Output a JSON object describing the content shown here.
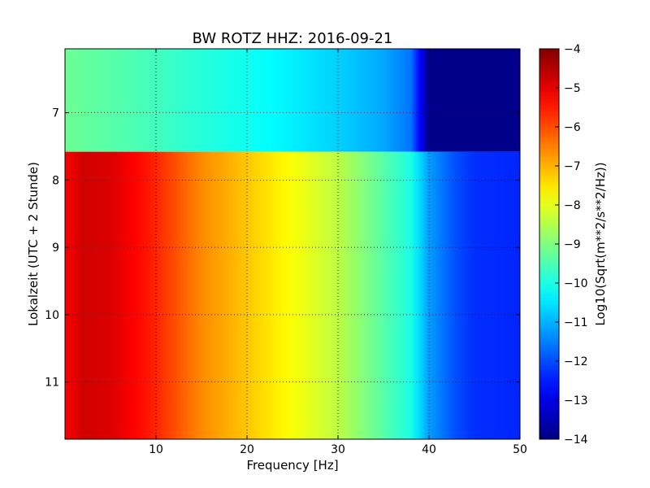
{
  "chart_data": {
    "type": "heatmap",
    "title": "BW ROTZ HHZ: 2016-09-21",
    "xlabel": "Frequency [Hz]",
    "ylabel": "Lokalzeit (UTC + 2 Stunde)",
    "xlim": [
      0,
      50
    ],
    "ylim": [
      11.85,
      6.05
    ],
    "y_inverted": true,
    "grid": true,
    "x_ticks": [
      10,
      20,
      30,
      40,
      50
    ],
    "x_tick_labels": [
      "10",
      "20",
      "30",
      "40",
      "50"
    ],
    "y_ticks": [
      7,
      8,
      9,
      10,
      11
    ],
    "y_tick_labels": [
      "7",
      "8",
      "9",
      "10",
      "11"
    ],
    "colorbar": {
      "label": "Log10(Sqrt(m**2/s**2/Hz))",
      "range": [
        -14,
        -4
      ],
      "ticks": [
        -4,
        -5,
        -6,
        -7,
        -8,
        -9,
        -10,
        -11,
        -12,
        -13,
        -14
      ],
      "tick_labels": [
        "−4",
        "−5",
        "−6",
        "−7",
        "−8",
        "−9",
        "−10",
        "−11",
        "−12",
        "−13",
        "−14"
      ],
      "colormap": "jet"
    },
    "segments": [
      {
        "time_range": [
          6.05,
          7.58
        ],
        "frequencies": [
          0,
          5,
          10,
          15,
          20,
          25,
          30,
          35,
          38,
          40,
          50
        ],
        "values": [
          -9.2,
          -9.4,
          -9.6,
          -9.9,
          -10.1,
          -10.4,
          -10.7,
          -11.1,
          -11.6,
          -13.9,
          -13.9
        ]
      },
      {
        "time_range": [
          7.58,
          11.85
        ],
        "frequencies": [
          0,
          2,
          5,
          8,
          10,
          15,
          20,
          25,
          30,
          35,
          38,
          40,
          43,
          45,
          50
        ],
        "values": [
          -5.2,
          -4.8,
          -4.9,
          -5.3,
          -5.6,
          -6.6,
          -7.2,
          -7.8,
          -8.4,
          -9.4,
          -10.0,
          -11.2,
          -12.0,
          -12.3,
          -12.4
        ]
      }
    ],
    "colors": {
      "background": "#ffffff",
      "grid": "#000000"
    }
  }
}
